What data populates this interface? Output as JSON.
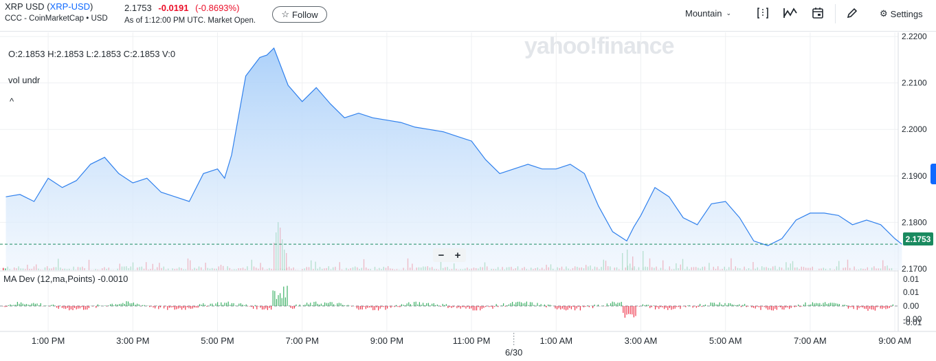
{
  "header": {
    "symbol_name": "XRP USD",
    "symbol_ticker": "XRP-USD",
    "source": "CCC - CoinMarketCap • USD",
    "price": "2.1753",
    "change": "-0.0191",
    "change_pct": "(-0.8693%)",
    "as_of": "As of 1:12:00 PM UTC. Market Open.",
    "follow_label": "Follow",
    "timezone": "Mountain",
    "settings_label": "Settings"
  },
  "overlay": {
    "ohlc": "O:2.1853   H:2.1853   L:2.1853   C:2.1853   V:0",
    "vol_label": "vol undr",
    "collapse_caret": "^",
    "indicator_label": "MA Dev (12,ma,Points)   -0.0010",
    "zoom_minus": "−",
    "zoom_plus": "+",
    "watermark": "yahoo!finance",
    "last_price": "2.1753"
  },
  "colors": {
    "line": "#2f80ed",
    "fill_top": "#a9cff9",
    "fill_bottom": "#eef5fd",
    "up": "#1aa34a",
    "down": "#eb0f29",
    "last_price_bg": "#1a8a5f"
  },
  "chart_data": {
    "type": "area",
    "title": "",
    "xlabel": "",
    "ylabel": "",
    "x_ticks": [
      "1:00 PM",
      "3:00 PM",
      "5:00 PM",
      "7:00 PM",
      "9:00 PM",
      "11:00 PM",
      "1:00 AM",
      "3:00 AM",
      "5:00 AM",
      "7:00 AM",
      "9:00 AM"
    ],
    "date_marker": "6/30",
    "y_ticks": [
      2.22,
      2.21,
      2.2,
      2.19,
      2.18,
      2.17
    ],
    "y_tick_labels": [
      "2.2200",
      "2.2100",
      "2.2000",
      "2.1900",
      "2.1800",
      "2.1700"
    ],
    "ylim": [
      2.1697,
      2.2209
    ],
    "last_value": 2.1753,
    "grid": true,
    "series": [
      {
        "x": [
          "12:00 PM",
          "12:20 PM",
          "12:40 PM",
          "1:00 PM",
          "1:20 PM",
          "1:40 PM",
          "2:00 PM",
          "2:20 PM",
          "2:40 PM",
          "3:00 PM",
          "3:20 PM",
          "3:40 PM",
          "4:00 PM",
          "4:20 PM",
          "4:40 PM",
          "5:00 PM",
          "5:10 PM",
          "5:20 PM",
          "5:40 PM",
          "6:00 PM",
          "6:10 PM",
          "6:20 PM",
          "6:30 PM",
          "6:40 PM",
          "7:00 PM",
          "7:20 PM",
          "7:40 PM",
          "8:00 PM",
          "8:20 PM",
          "8:40 PM",
          "9:00 PM",
          "9:20 PM",
          "9:40 PM",
          "10:00 PM",
          "10:20 PM",
          "10:40 PM",
          "11:00 PM",
          "11:20 PM",
          "11:40 PM",
          "12:00 AM",
          "12:20 AM",
          "12:40 AM",
          "1:00 AM",
          "1:20 AM",
          "1:40 AM",
          "2:00 AM",
          "2:20 AM",
          "2:40 AM",
          "2:50 AM",
          "3:00 AM",
          "3:20 AM",
          "3:40 AM",
          "4:00 AM",
          "4:20 AM",
          "4:40 AM",
          "5:00 AM",
          "5:20 AM",
          "5:40 AM",
          "6:00 AM",
          "6:20 AM",
          "6:40 AM",
          "7:00 AM",
          "7:20 AM",
          "7:40 AM",
          "8:00 AM",
          "8:20 AM",
          "8:40 AM",
          "9:00 AM",
          "9:10 AM"
        ],
        "values": [
          2.1855,
          2.186,
          2.1845,
          2.1895,
          2.1875,
          2.189,
          2.1925,
          2.194,
          2.1905,
          2.1885,
          2.1895,
          2.1865,
          2.1855,
          2.1845,
          2.1905,
          2.1915,
          2.1895,
          2.1945,
          2.2115,
          2.2155,
          2.216,
          2.2175,
          2.2135,
          2.2095,
          2.206,
          2.209,
          2.2055,
          2.2025,
          2.2035,
          2.2025,
          2.202,
          2.2015,
          2.2005,
          2.2,
          2.1995,
          2.1985,
          2.1975,
          2.1935,
          2.1905,
          2.1915,
          2.1925,
          2.1915,
          2.1915,
          2.1925,
          2.1905,
          2.1835,
          2.178,
          2.176,
          2.179,
          2.1815,
          2.1875,
          2.1855,
          2.181,
          2.1795,
          2.184,
          2.1845,
          2.181,
          2.176,
          2.175,
          2.1765,
          2.1805,
          2.182,
          2.182,
          2.1815,
          2.1795,
          2.1805,
          2.1795,
          2.1765,
          2.1753
        ]
      }
    ],
    "indicator": {
      "name": "MA Dev (12,ma,Points)",
      "last": -0.001,
      "y_tick_labels": [
        "0.01",
        "0.01",
        "0.00",
        "-0.00",
        "-0.01"
      ]
    }
  }
}
